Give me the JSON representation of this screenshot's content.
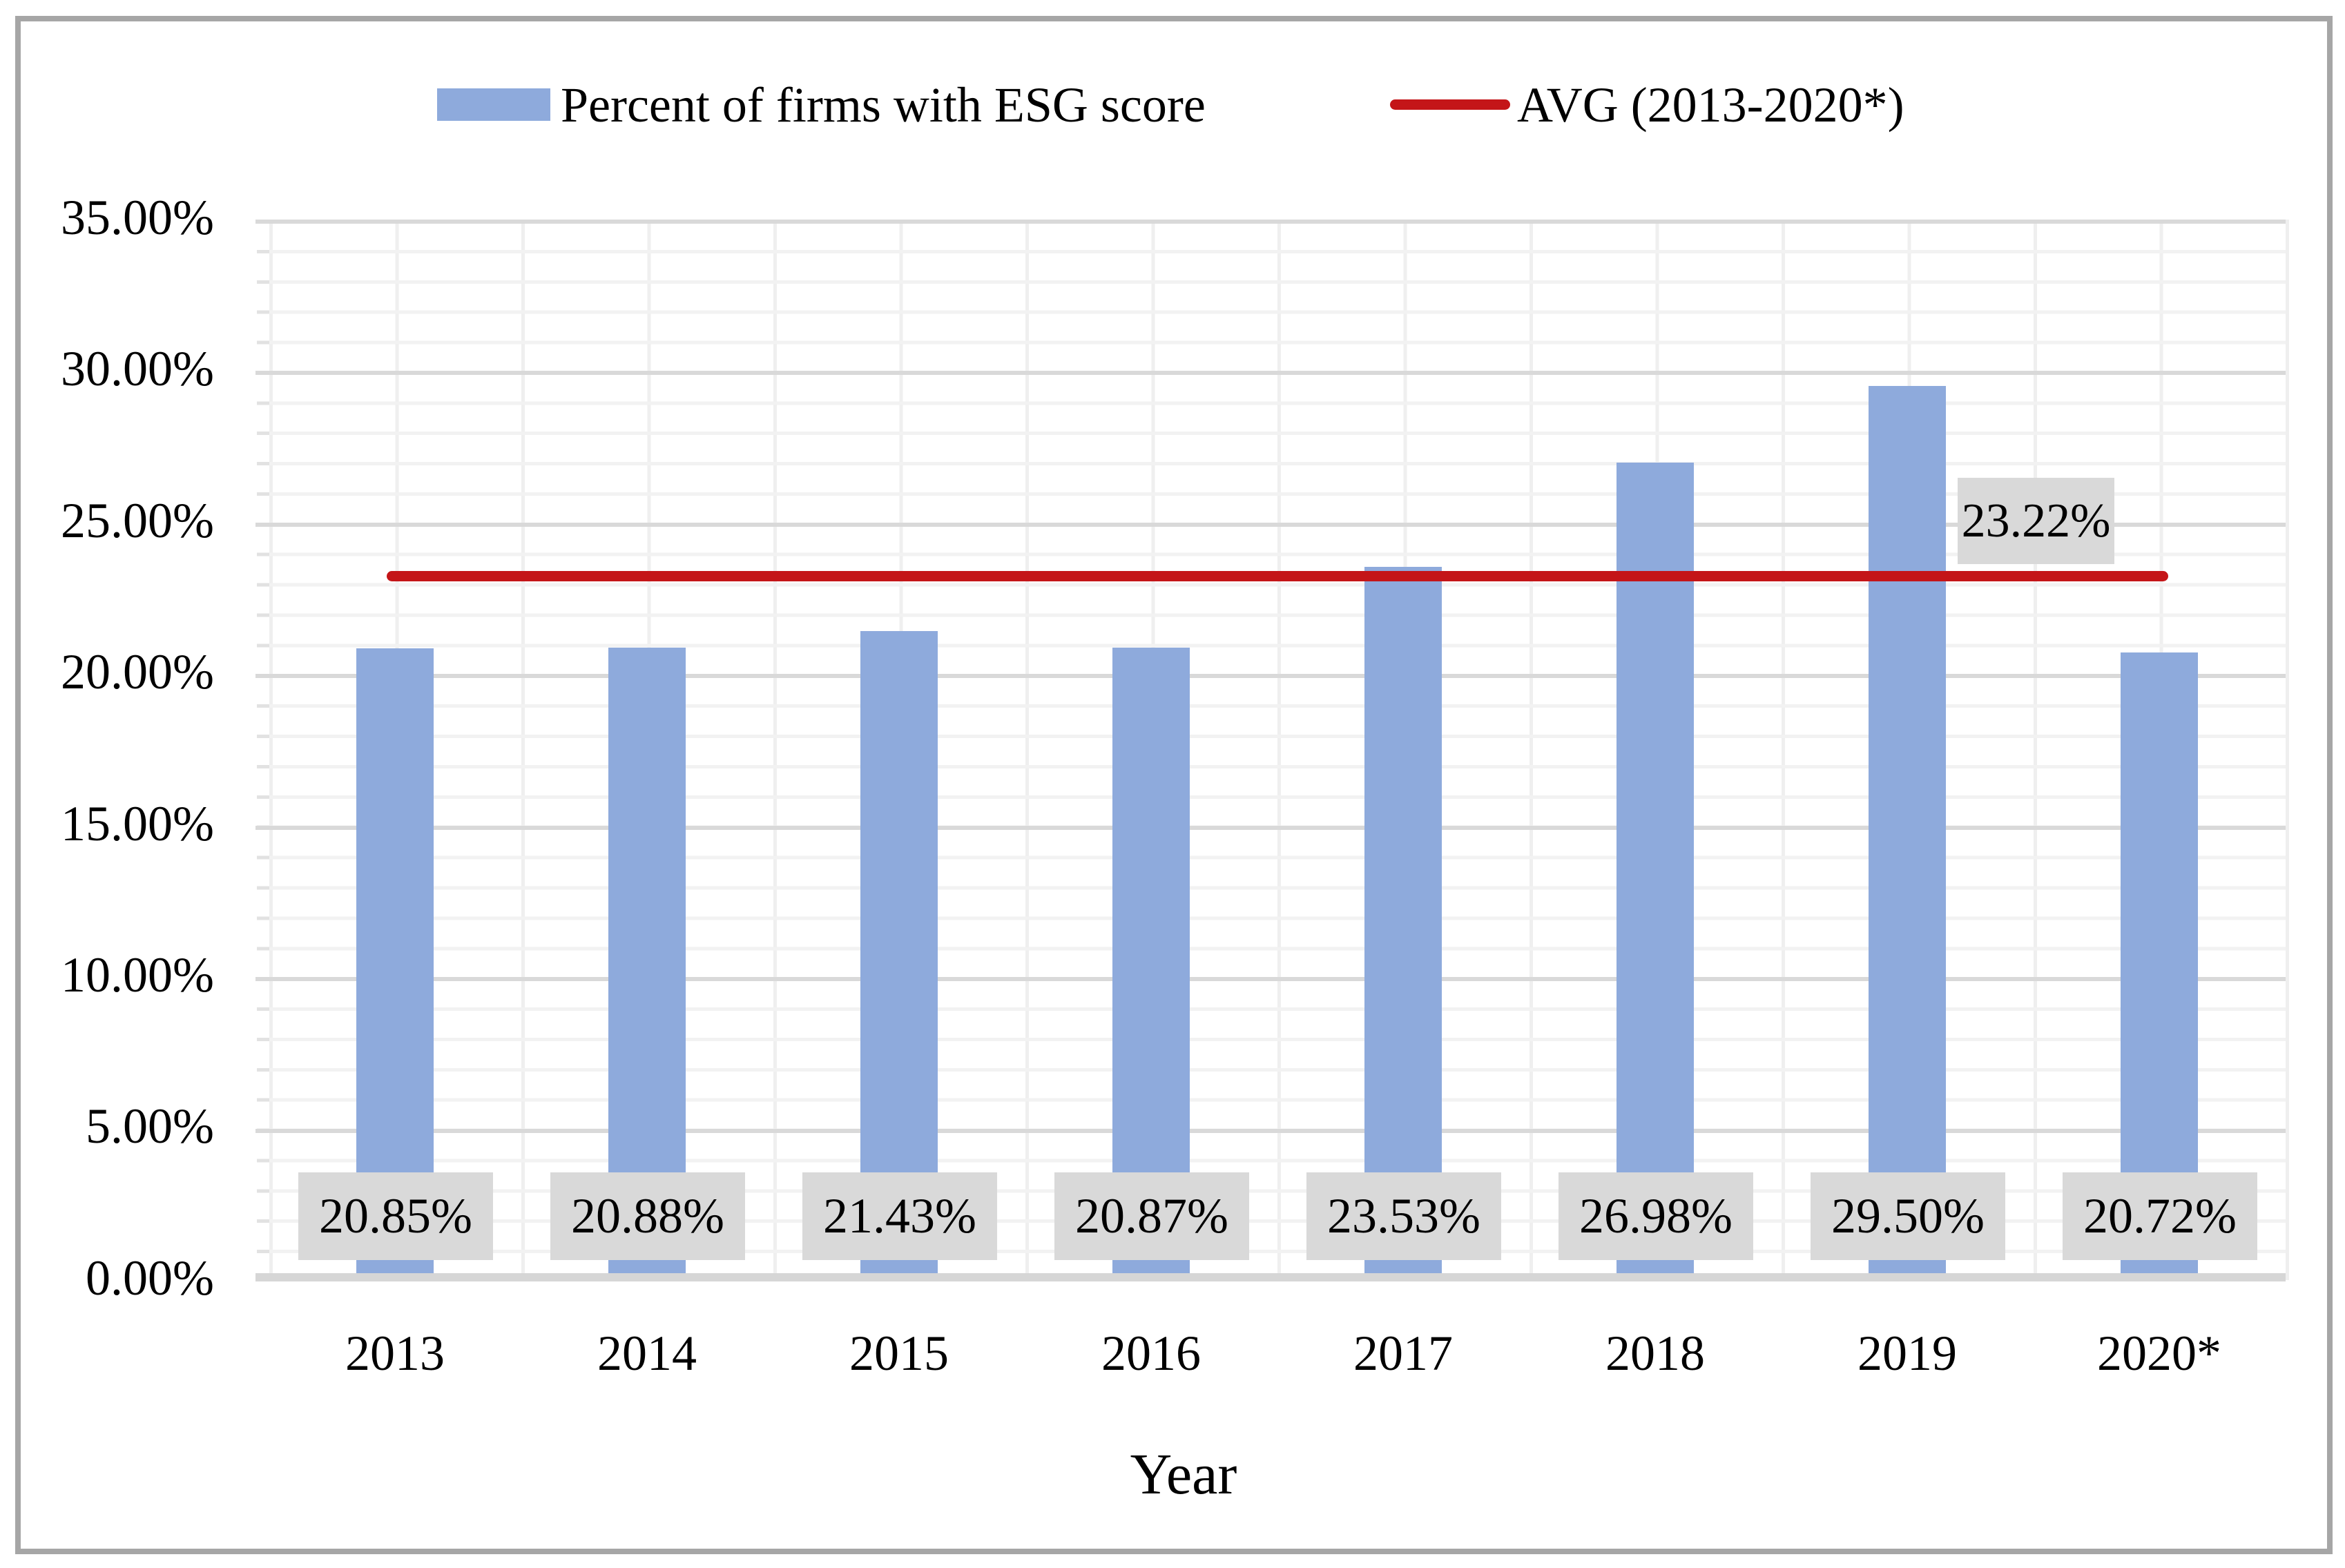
{
  "legend": {
    "series_label": "Percent of firms with ESG score",
    "avg_label": "AVG (2013-2020*)"
  },
  "chart_data": {
    "type": "bar",
    "title": "",
    "xlabel": "Year",
    "ylabel": "",
    "categories": [
      "2013",
      "2014",
      "2015",
      "2016",
      "2017",
      "2018",
      "2019",
      "2020*"
    ],
    "series": [
      {
        "name": "Percent of firms with ESG score",
        "values": [
          20.85,
          20.88,
          21.43,
          20.87,
          23.53,
          26.98,
          29.5,
          20.72
        ]
      }
    ],
    "data_labels": [
      "20.85%",
      "20.88%",
      "21.43%",
      "20.87%",
      "23.53%",
      "26.98%",
      "29.50%",
      "20.72%"
    ],
    "avg_line": {
      "name": "AVG (2013-2020*)",
      "value": 23.22,
      "label": "23.22%"
    },
    "ylim": [
      0,
      35
    ],
    "y_tick_step": 5,
    "y_minor_step": 1,
    "y_ticks": [
      "35.00%",
      "30.00%",
      "25.00%",
      "20.00%",
      "15.00%",
      "10.00%",
      "5.00%",
      "0.00%"
    ],
    "grid": "horizontal major+minor, vertical minor",
    "legend_position": "top",
    "colors": {
      "bar": "#8EAADC",
      "avg_line": "#C41518",
      "label_box": "#D9D9D9",
      "major_grid": "#D9D9D9",
      "minor_grid": "#F2F2F2",
      "axis_line": "#D6D6D6",
      "figure_border": "#A6A6A6",
      "text": "#000000"
    }
  }
}
